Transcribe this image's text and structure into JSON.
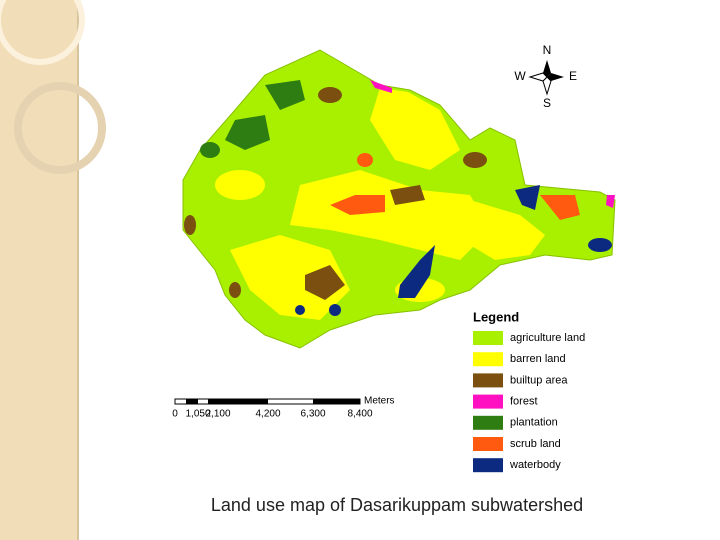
{
  "map": {
    "compass": {
      "north": "N",
      "south": "S",
      "east": "E",
      "west": "W"
    },
    "scale_bar": {
      "unit": "Meters",
      "labels": [
        "0",
        "1,050",
        "2,100",
        "4,200",
        "6,300",
        "8,400"
      ]
    },
    "legend": {
      "title": "Legend",
      "items": [
        {
          "label": "agriculture land",
          "color": "#a8f000"
        },
        {
          "label": "barren land",
          "color": "#ffff00"
        },
        {
          "label": "builtup area",
          "color": "#7a4f10"
        },
        {
          "label": "forest",
          "color": "#ff10c0"
        },
        {
          "label": "plantation",
          "color": "#2e7d12"
        },
        {
          "label": "scrub land",
          "color": "#ff5a10"
        },
        {
          "label": "waterbody",
          "color": "#0b2a80"
        }
      ]
    }
  },
  "caption": "Land use map of Dasarikuppam subwatershed"
}
